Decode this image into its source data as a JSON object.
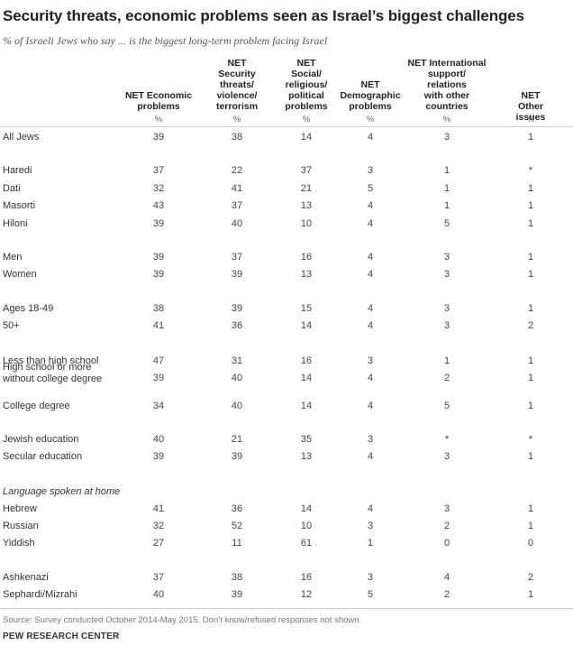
{
  "chart_data": {
    "type": "table",
    "title": "Security threats, economic problems seen as Israel’s biggest challenges",
    "subtitle": "% of Israeli Jews who say ...  is the biggest long-term problem facing Israel",
    "columns": [
      "NET Economic\nproblems",
      "NET\nSecurity\nthreats/\nviolence/\nterrorism",
      "NET\nSocial/\nreligious/\npolitical\nproblems",
      "NET\nDemographic\nproblems",
      "NET International\nsupport/\nrelations\nwith other\ncountries",
      "NET\nOther issues"
    ],
    "unit_label": "%",
    "rows": [
      {
        "label": "All Jews",
        "values": [
          "39",
          "38",
          "14",
          "4",
          "3",
          "1"
        ]
      },
      {
        "label": "Haredi",
        "values": [
          "37",
          "22",
          "37",
          "3",
          "1",
          "*"
        ]
      },
      {
        "label": "Dati",
        "values": [
          "32",
          "41",
          "21",
          "5",
          "1",
          "1"
        ]
      },
      {
        "label": "Masorti",
        "values": [
          "43",
          "37",
          "13",
          "4",
          "1",
          "1"
        ]
      },
      {
        "label": "Hiloni",
        "values": [
          "39",
          "40",
          "10",
          "4",
          "5",
          "1"
        ]
      },
      {
        "label": "Men",
        "values": [
          "39",
          "37",
          "16",
          "4",
          "3",
          "1"
        ]
      },
      {
        "label": "Women",
        "values": [
          "39",
          "39",
          "13",
          "4",
          "3",
          "1"
        ]
      },
      {
        "label": "Ages 18-49",
        "values": [
          "38",
          "39",
          "15",
          "4",
          "3",
          "1"
        ]
      },
      {
        "label": "50+",
        "values": [
          "41",
          "36",
          "14",
          "4",
          "3",
          "2"
        ]
      },
      {
        "label": "Less than high school",
        "values": [
          "47",
          "31",
          "16",
          "3",
          "1",
          "1"
        ]
      },
      {
        "label": "High school or more\nwithout college degree",
        "values": [
          "39",
          "40",
          "14",
          "4",
          "2",
          "1"
        ]
      },
      {
        "label": "College degree",
        "values": [
          "34",
          "40",
          "14",
          "4",
          "5",
          "1"
        ]
      },
      {
        "label": "Jewish education",
        "values": [
          "40",
          "21",
          "35",
          "3",
          "*",
          "*"
        ]
      },
      {
        "label": "Secular education",
        "values": [
          "39",
          "39",
          "13",
          "4",
          "3",
          "1"
        ]
      },
      {
        "label": "Hebrew",
        "values": [
          "41",
          "36",
          "14",
          "4",
          "3",
          "1"
        ]
      },
      {
        "label": "Russian",
        "values": [
          "32",
          "52",
          "10",
          "3",
          "2",
          "1"
        ]
      },
      {
        "label": "Yiddish",
        "values": [
          "27",
          "11",
          "61",
          "1",
          "0",
          "0"
        ]
      },
      {
        "label": "Ashkenazi",
        "values": [
          "37",
          "38",
          "16",
          "3",
          "4",
          "2"
        ]
      },
      {
        "label": "Sephardi/Mizrahi",
        "values": [
          "40",
          "39",
          "12",
          "5",
          "2",
          "1"
        ]
      }
    ],
    "section_label": "Language spoken at home"
  },
  "footer": {
    "source": "Source: Survey conducted October 2014-May 2015. Don’t know/refused responses not shown.",
    "brand": "PEW RESEARCH CENTER"
  },
  "colors": {
    "rule": "#cfcfcf",
    "text": "#222222"
  }
}
